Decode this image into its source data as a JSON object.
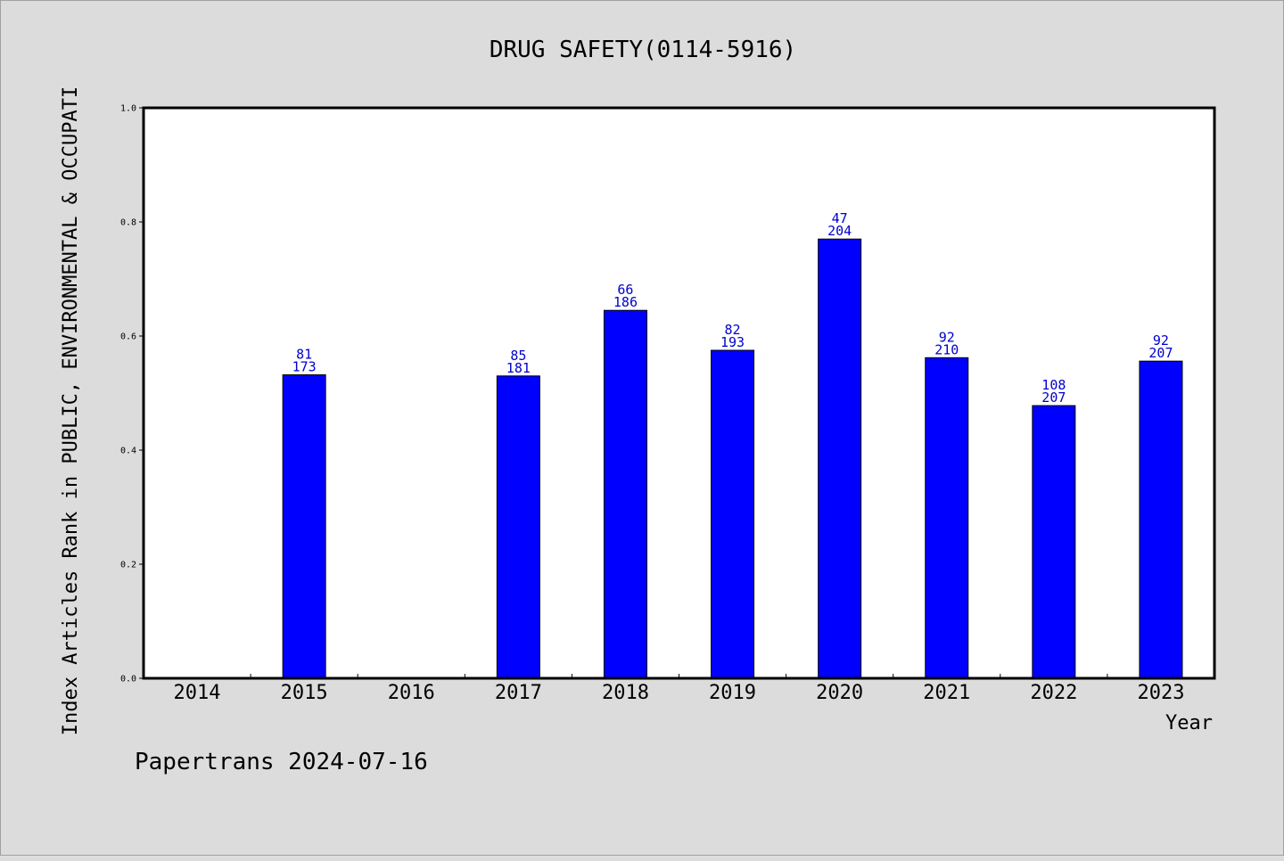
{
  "chart_data": {
    "type": "bar",
    "title": "DRUG SAFETY(0114-5916)",
    "xlabel": "Year",
    "ylabel": "Index Articles Rank in PUBLIC, ENVIRONMENTAL & OCCUPATI",
    "ylim": [
      0.0,
      1.0
    ],
    "yticks": [
      "0.0",
      "0.2",
      "0.4",
      "0.6",
      "0.8",
      "1.0"
    ],
    "categories": [
      "2014",
      "2015",
      "2016",
      "2017",
      "2018",
      "2019",
      "2020",
      "2021",
      "2022",
      "2023"
    ],
    "values": [
      null,
      0.532,
      null,
      0.53,
      0.645,
      0.575,
      0.77,
      0.562,
      0.478,
      0.556
    ],
    "rank_labels": [
      "",
      "81",
      "",
      "85",
      "66",
      "82",
      "47",
      "92",
      "108",
      "92"
    ],
    "total_labels": [
      "",
      "173",
      "",
      "181",
      "186",
      "193",
      "204",
      "210",
      "207",
      "207"
    ],
    "bar_color": "#0000ff",
    "label_color": "#0000cc",
    "grid": false,
    "legend": "none"
  },
  "footer": "Papertrans 2024-07-16"
}
